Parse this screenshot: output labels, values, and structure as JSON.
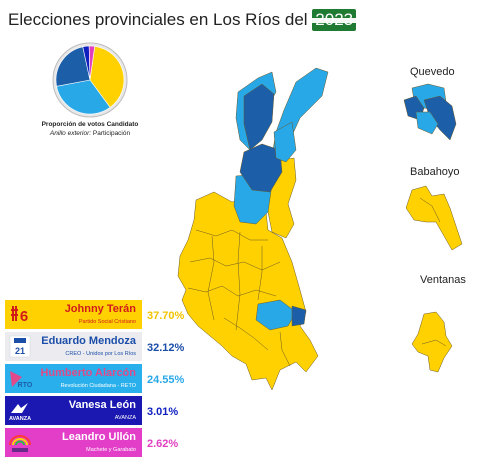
{
  "title": {
    "prefix": "Elecciones provinciales en Los Ríos del ",
    "year": "2023"
  },
  "pie_caption": {
    "line1": "Proporción de votos Candidato",
    "line2_label": "Anillo exterior:",
    "line2_value": "Participación"
  },
  "insets": {
    "quevedo": "Quevedo",
    "babahoyo": "Babahoyo",
    "ventanas": "Ventanas"
  },
  "colors": {
    "teran": "#ffd100",
    "mendoza": "#29a8e8",
    "alarcon": "#1c5ea8",
    "leon": "#1020c0",
    "ullon": "#e040c0"
  },
  "candidates": [
    {
      "id": "teran",
      "name": "Johnny Terán",
      "party": "Partido Social Cristiano",
      "percent": "37.70%",
      "bg": "#ffd100",
      "name_color": "#d11b1b",
      "pct_color": "#f2c300",
      "logo": "list-6-logo"
    },
    {
      "id": "mendoza",
      "name": "Eduardo Mendoza",
      "party": "CREO - Unidos por Los Ríos",
      "percent": "32.12%",
      "bg": "#ececf0",
      "name_color": "#1b4ea8",
      "pct_color": "#1b4ea8",
      "logo": "creo-21-logo"
    },
    {
      "id": "alarcon",
      "name": "Humberto Alarcón",
      "party": "Revolución Ciudadana - RETO",
      "percent": "24.55%",
      "bg": "#29b0ec",
      "name_color": "#e04a8a",
      "pct_color": "#29a8e8",
      "logo": "rc-5-logo"
    },
    {
      "id": "leon",
      "name": "Vanesa León",
      "party": "AVANZA",
      "percent": "3.01%",
      "bg": "#1a18b0",
      "name_color": "#ffffff",
      "pct_color": "#1020c0",
      "logo": "avanza-logo"
    },
    {
      "id": "ullon",
      "name": "Leandro Ullón",
      "party": "Machete y Garabato",
      "percent": "2.62%",
      "bg": "#e23ec8",
      "name_color": "#ffffff",
      "pct_color": "#e040c0",
      "logo": "rainbow-logo"
    }
  ],
  "chart_data": {
    "type": "pie",
    "categories": [
      "Johnny Terán",
      "Eduardo Mendoza",
      "Humberto Alarcón",
      "Vanesa León",
      "Leandro Ullón"
    ],
    "values": [
      37.7,
      32.12,
      24.55,
      3.01,
      2.62
    ]
  }
}
